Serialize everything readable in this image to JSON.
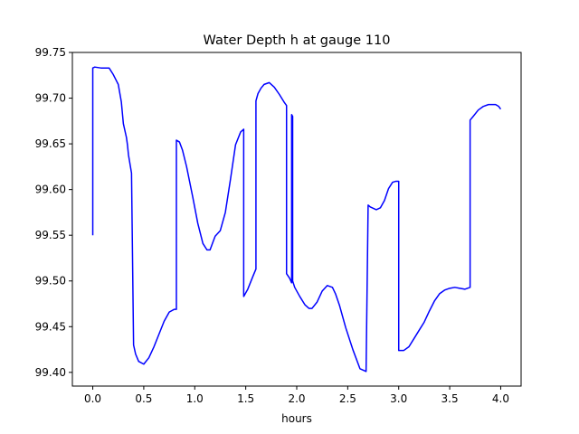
{
  "chart_data": {
    "type": "line",
    "title": "Water Depth h at gauge 110",
    "xlabel": "hours",
    "ylabel": "",
    "xlim": [
      -0.2,
      4.2
    ],
    "ylim": [
      99.385,
      99.75
    ],
    "xticks": [
      0.0,
      0.5,
      1.0,
      1.5,
      2.0,
      2.5,
      3.0,
      3.5,
      4.0
    ],
    "xtick_labels": [
      "0.0",
      "0.5",
      "1.0",
      "1.5",
      "2.0",
      "2.5",
      "3.0",
      "3.5",
      "4.0"
    ],
    "yticks": [
      99.4,
      99.45,
      99.5,
      99.55,
      99.6,
      99.65,
      99.7,
      99.75
    ],
    "ytick_labels": [
      "99.40",
      "99.45",
      "99.50",
      "99.55",
      "99.60",
      "99.65",
      "99.70",
      "99.75"
    ],
    "grid": false,
    "series": [
      {
        "color": "#0000ff",
        "x": [
          0.0,
          0.0,
          0.02,
          0.08,
          0.16,
          0.2,
          0.25,
          0.28,
          0.3,
          0.33,
          0.34,
          0.35,
          0.38,
          0.4,
          0.4,
          0.42,
          0.45,
          0.5,
          0.55,
          0.6,
          0.65,
          0.7,
          0.75,
          0.8,
          0.82,
          0.82,
          0.85,
          0.88,
          0.92,
          0.98,
          1.03,
          1.08,
          1.12,
          1.15,
          1.18,
          1.2,
          1.25,
          1.3,
          1.35,
          1.4,
          1.45,
          1.48,
          1.48,
          1.52,
          1.57,
          1.6,
          1.6,
          1.62,
          1.65,
          1.68,
          1.73,
          1.78,
          1.83,
          1.88,
          1.9,
          1.9,
          1.93,
          1.95,
          1.95,
          1.96,
          1.96,
          1.98,
          2.03,
          2.08,
          2.12,
          2.15,
          2.2,
          2.25,
          2.3,
          2.35,
          2.38,
          2.42,
          2.48,
          2.55,
          2.62,
          2.68,
          2.7,
          2.7,
          2.72,
          2.78,
          2.82,
          2.86,
          2.9,
          2.94,
          2.97,
          3.0,
          3.0,
          3.05,
          3.1,
          3.15,
          3.2,
          3.25,
          3.3,
          3.35,
          3.4,
          3.45,
          3.5,
          3.55,
          3.6,
          3.65,
          3.7,
          3.7,
          3.73,
          3.78,
          3.83,
          3.88,
          3.95,
          3.98,
          4.0
        ],
        "y": [
          99.55,
          99.733,
          99.734,
          99.733,
          99.733,
          99.726,
          99.715,
          99.696,
          99.672,
          99.657,
          99.649,
          99.638,
          99.618,
          99.43,
          99.43,
          99.42,
          99.412,
          99.409,
          99.416,
          99.428,
          99.442,
          99.456,
          99.466,
          99.469,
          99.469,
          99.654,
          99.652,
          99.643,
          99.625,
          99.592,
          99.563,
          99.541,
          99.534,
          99.534,
          99.543,
          99.549,
          99.555,
          99.575,
          99.611,
          99.649,
          99.663,
          99.666,
          99.483,
          99.491,
          99.505,
          99.513,
          99.697,
          99.705,
          99.711,
          99.715,
          99.717,
          99.712,
          99.704,
          99.695,
          99.692,
          99.508,
          99.503,
          99.498,
          99.682,
          99.68,
          99.5,
          99.493,
          99.483,
          99.474,
          99.47,
          99.47,
          99.477,
          99.489,
          99.495,
          99.493,
          99.486,
          99.473,
          99.449,
          99.425,
          99.404,
          99.401,
          99.583,
          99.583,
          99.581,
          99.578,
          99.58,
          99.588,
          99.601,
          99.608,
          99.609,
          99.609,
          99.424,
          99.424,
          99.428,
          99.437,
          99.446,
          99.455,
          99.467,
          99.478,
          99.486,
          99.49,
          99.492,
          99.493,
          99.492,
          99.491,
          99.493,
          99.676,
          99.68,
          99.687,
          99.691,
          99.693,
          99.693,
          99.691,
          99.688
        ]
      }
    ]
  }
}
